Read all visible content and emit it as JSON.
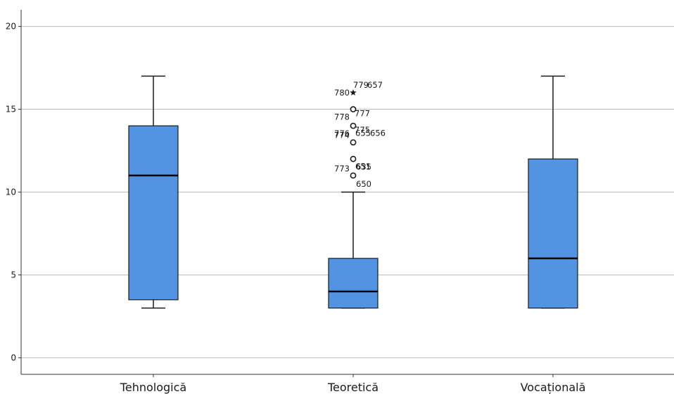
{
  "chart_data": {
    "type": "boxplot",
    "title": "",
    "xlabel": "",
    "ylabel": "",
    "ylim": [
      -1,
      21
    ],
    "yticks": [
      0,
      5,
      10,
      15,
      20
    ],
    "grid": true,
    "box_color": "#5294e2",
    "categories": [
      {
        "label": "Tehnologică",
        "whisker_low": 3,
        "q1": 3.5,
        "median": 11,
        "q3": 14,
        "whisker_high": 17,
        "outliers": []
      },
      {
        "label": "Teoretică",
        "whisker_low": 3,
        "q1": 3,
        "median": 4,
        "q3": 6,
        "whisker_high": 10,
        "outliers": [
          {
            "value": 11,
            "labels": [
              "773",
              "651",
              "650"
            ]
          },
          {
            "value": 12,
            "labels": [
              "635"
            ]
          },
          {
            "value": 13,
            "labels": [
              "774",
              "655",
              "656"
            ]
          },
          {
            "value": 14,
            "labels": [
              "776",
              "775"
            ]
          },
          {
            "value": 15,
            "labels": [
              "778",
              "777"
            ]
          },
          {
            "value": 16,
            "labels": [
              "780",
              "779",
              "657"
            ],
            "extreme": true
          }
        ]
      },
      {
        "label": "Vocațională",
        "whisker_low": 3,
        "q1": 3,
        "median": 6,
        "q3": 12,
        "whisker_high": 17,
        "outliers": []
      }
    ]
  }
}
